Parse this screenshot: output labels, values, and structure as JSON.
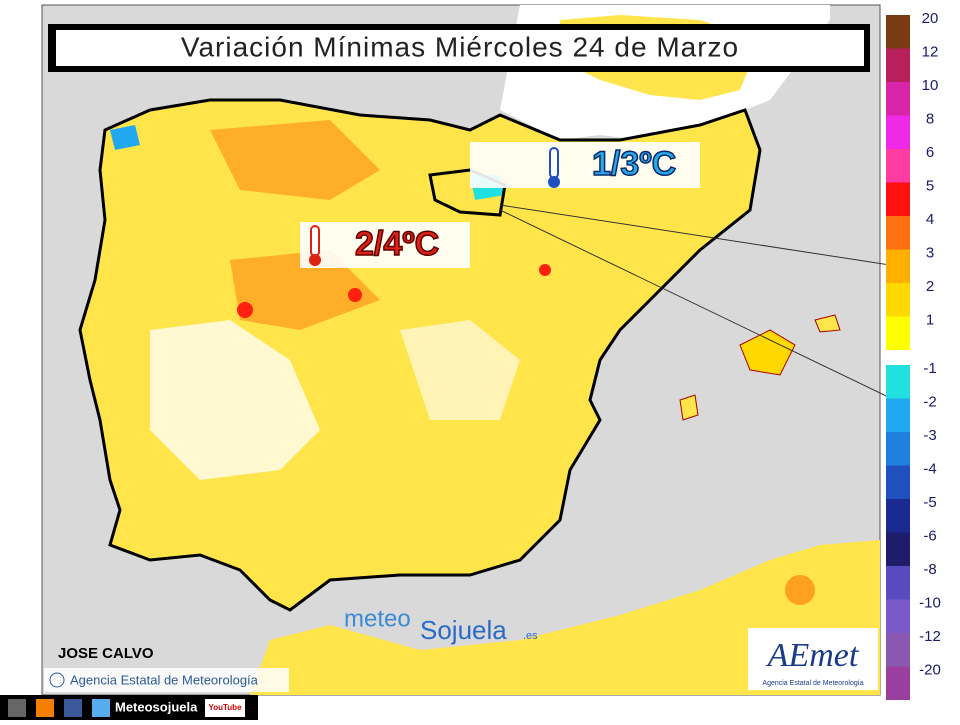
{
  "title": "Variación Mínimas Miércoles 24 de Marzo",
  "annotations": [
    {
      "label": "1/3ºC",
      "trend": "down"
    },
    {
      "label": "2/4ºC",
      "trend": "up"
    }
  ],
  "legend": [
    {
      "label": 20,
      "color": "#7a3a12"
    },
    {
      "label": 12,
      "color": "#b8205c"
    },
    {
      "label": 10,
      "color": "#d824a8"
    },
    {
      "label": 8,
      "color": "#f028e8"
    },
    {
      "label": 6,
      "color": "#ff3aa0"
    },
    {
      "label": 5,
      "color": "#ff1010"
    },
    {
      "label": 4,
      "color": "#ff7010"
    },
    {
      "label": 3,
      "color": "#ffb000"
    },
    {
      "label": 2,
      "color": "#ffd800"
    },
    {
      "label": 1,
      "color": "#ffff00"
    },
    {
      "label": -1,
      "color": "#20e0e0"
    },
    {
      "label": -2,
      "color": "#20a8f0"
    },
    {
      "label": -3,
      "color": "#2080e0"
    },
    {
      "label": -4,
      "color": "#2050c0"
    },
    {
      "label": -5,
      "color": "#1a2a90"
    },
    {
      "label": -6,
      "color": "#201c6c"
    },
    {
      "label": -8,
      "color": "#5a4ac0"
    },
    {
      "label": -10,
      "color": "#7a5ac8"
    },
    {
      "label": -12,
      "color": "#8a58b0"
    },
    {
      "label": -20,
      "color": "#9a3ea0"
    }
  ],
  "author": "JOSE CALVO",
  "credit": "Agencia Estatal de Meteorología",
  "watermark": {
    "part1": "meteo",
    "part2": "Sojuela",
    "suffix": ".es"
  },
  "logo": {
    "name": "AEmet",
    "subtitle": "Agencia Estatal de Meteorología"
  },
  "footer": {
    "site": "Meteosojuela",
    "youtube": "YouTube"
  }
}
